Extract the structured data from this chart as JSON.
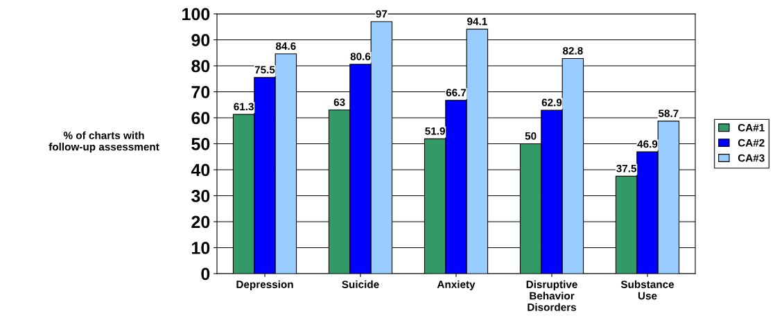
{
  "chart_data": {
    "type": "bar",
    "ylabel": "% of charts with\nfollow-up assessment",
    "categories": [
      "Depression",
      "Suicide",
      "Anxiety",
      "Disruptive\nBehavior\nDisorders",
      "Substance\nUse"
    ],
    "series": [
      {
        "name": "CA#1",
        "color": "#339966",
        "values": [
          61.3,
          63,
          51.9,
          50,
          37.5
        ]
      },
      {
        "name": "CA#2",
        "color": "#0000ff",
        "values": [
          75.5,
          80.6,
          66.7,
          62.9,
          46.9
        ]
      },
      {
        "name": "CA#3",
        "color": "#99ccff",
        "values": [
          84.6,
          97,
          94.1,
          82.8,
          58.7
        ]
      }
    ],
    "ylim": [
      0,
      100
    ],
    "yticks": [
      0,
      10,
      20,
      30,
      40,
      50,
      60,
      70,
      80,
      90,
      100
    ],
    "grid": "y",
    "legend": "right",
    "data_labels": true
  }
}
